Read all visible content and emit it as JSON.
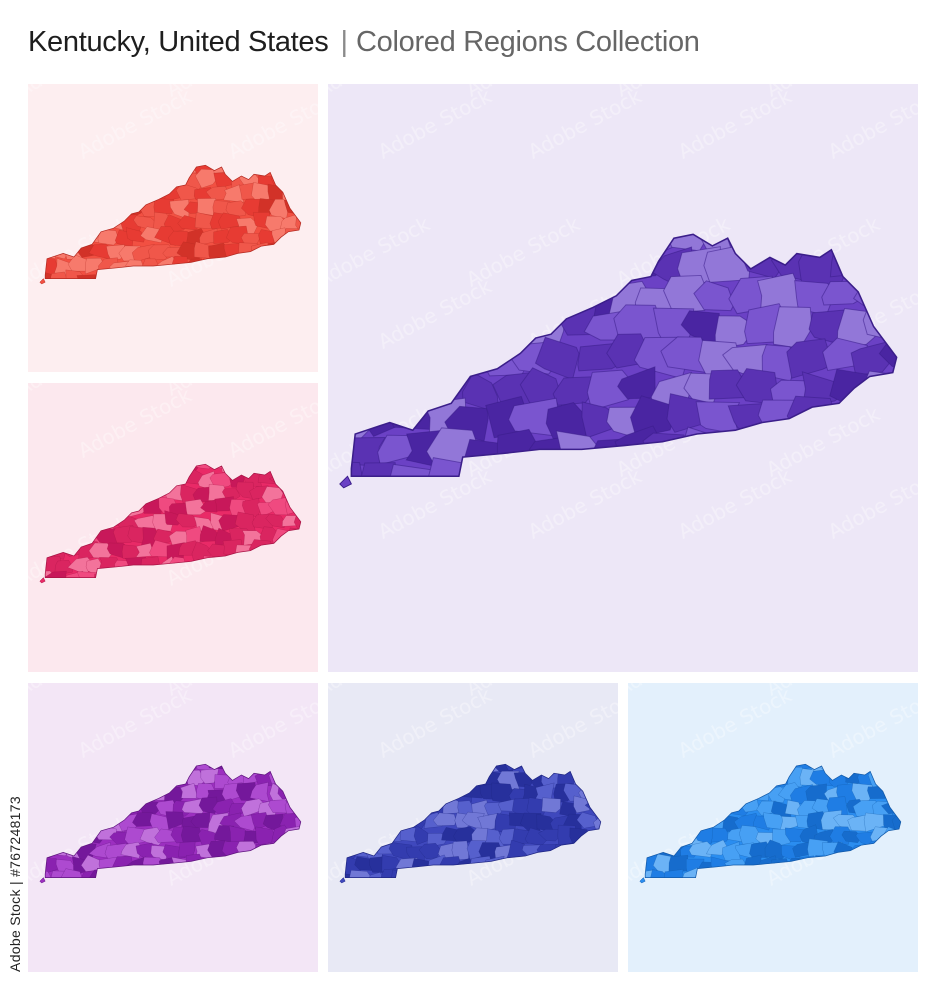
{
  "header": {
    "title": "Kentucky, United States",
    "separator": "|",
    "subtitle": "Colored Regions Collection"
  },
  "side_text": "Adobe Stock | #767248173",
  "watermark": "Adobe Stock",
  "panels": [
    {
      "id": "red",
      "bg": "#fdeef0",
      "fill": "#f25042",
      "shades": [
        "#e73b33",
        "#f0574a",
        "#d23228",
        "#f77a6c"
      ],
      "stroke": "#b32a22"
    },
    {
      "id": "crimson",
      "bg": "#fce8ee",
      "fill": "#e92a67",
      "shades": [
        "#da2560",
        "#f04a80",
        "#c8185a",
        "#f3739b"
      ],
      "stroke": "#a71445"
    },
    {
      "id": "violet",
      "bg": "#ede7f7",
      "fill": "#6b41c5",
      "shades": [
        "#5a32b3",
        "#7a55cf",
        "#4a25a2",
        "#9277d8"
      ],
      "stroke": "#3b1e8a"
    },
    {
      "id": "purple",
      "bg": "#f3e6f6",
      "fill": "#9c2fc0",
      "shades": [
        "#8a22b0",
        "#ad4ad0",
        "#74189b",
        "#c071db"
      ],
      "stroke": "#5f157e"
    },
    {
      "id": "indigo",
      "bg": "#e8e9f5",
      "fill": "#3f48bd",
      "shades": [
        "#333caf",
        "#5660cd",
        "#27309c",
        "#7178d6"
      ],
      "stroke": "#1f2683"
    },
    {
      "id": "blue",
      "bg": "#e3f0fc",
      "fill": "#2a8df0",
      "shades": [
        "#1f7de4",
        "#47a0f4",
        "#166ccd",
        "#6bb3f6"
      ],
      "stroke": "#1259a8"
    }
  ]
}
